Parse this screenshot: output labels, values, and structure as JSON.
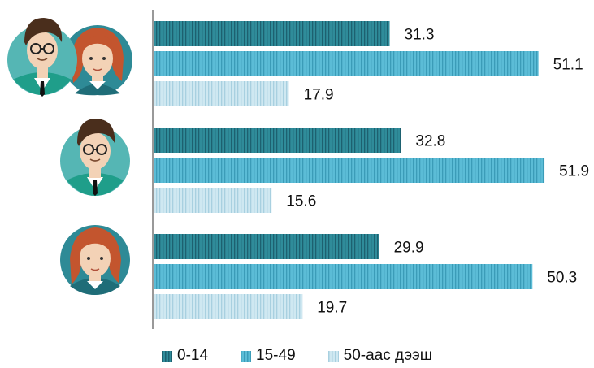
{
  "chart_data": {
    "type": "bar",
    "orientation": "horizontal",
    "categories": [
      "",
      "",
      ""
    ],
    "category_icons": [
      "man-and-woman-icon",
      "man-icon",
      "woman-icon"
    ],
    "series": [
      {
        "name": "0-14",
        "values": [
          31.3,
          32.8,
          29.9
        ],
        "color": "#2f8c9a"
      },
      {
        "name": "15-49",
        "values": [
          51.1,
          51.9,
          50.3
        ],
        "color": "#5bbcd6"
      },
      {
        "name": "50-аас дээш",
        "values": [
          17.9,
          15.6,
          19.7
        ],
        "color": "#bfe0ec"
      }
    ],
    "xlim": [
      0,
      52
    ],
    "grid": false,
    "legend_position": "bottom"
  },
  "legend": [
    "0-14",
    "15-49",
    "50-аас дээш"
  ]
}
